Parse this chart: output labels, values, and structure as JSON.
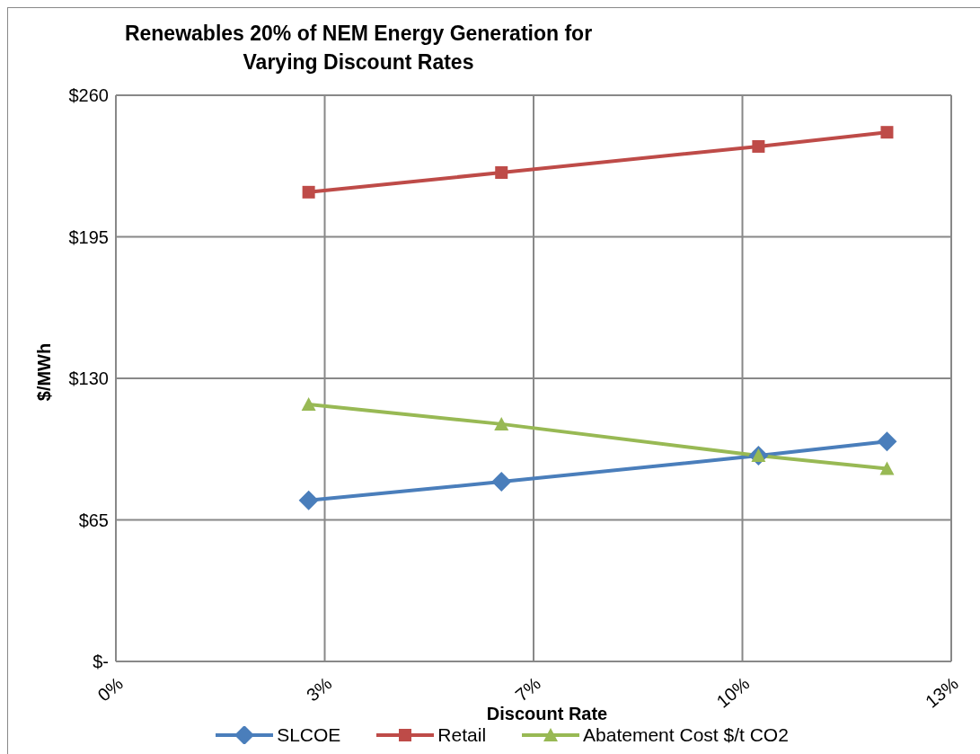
{
  "chart_data": {
    "type": "line",
    "title": "Renewables 20% of NEM Energy Generation for\nVarying Discount Rates",
    "xlabel": "Discount Rate",
    "ylabel": "$/MWh",
    "x": [
      3,
      6,
      10,
      12
    ],
    "xlim": [
      0,
      13
    ],
    "xticks": [
      {
        "value": 0,
        "label": "0%"
      },
      {
        "value": 3.25,
        "label": "3%"
      },
      {
        "value": 6.5,
        "label": "7%"
      },
      {
        "value": 9.75,
        "label": "10%"
      },
      {
        "value": 13,
        "label": "13%"
      }
    ],
    "ylim": [
      0,
      260
    ],
    "yticks": [
      {
        "value": 0,
        "label": "$-"
      },
      {
        "value": 65,
        "label": "$65"
      },
      {
        "value": 130,
        "label": "$130"
      },
      {
        "value": 195,
        "label": "$195"
      },
      {
        "value": 260,
        "label": "$260"
      }
    ],
    "series": [
      {
        "name": "SLCOE",
        "color": "#4a7ebb",
        "marker": "diamond",
        "values": [
          74,
          82.5,
          94.5,
          101
        ]
      },
      {
        "name": "Retail",
        "color": "#be4b48",
        "marker": "square",
        "values": [
          215.5,
          224.5,
          236.5,
          243
        ]
      },
      {
        "name": "Abatement Cost $/t CO2",
        "color": "#98b954",
        "marker": "triangle",
        "values": [
          118,
          109,
          94.5,
          88.5
        ]
      }
    ],
    "grid": true,
    "legend": "bottom",
    "line_style": "solid"
  }
}
